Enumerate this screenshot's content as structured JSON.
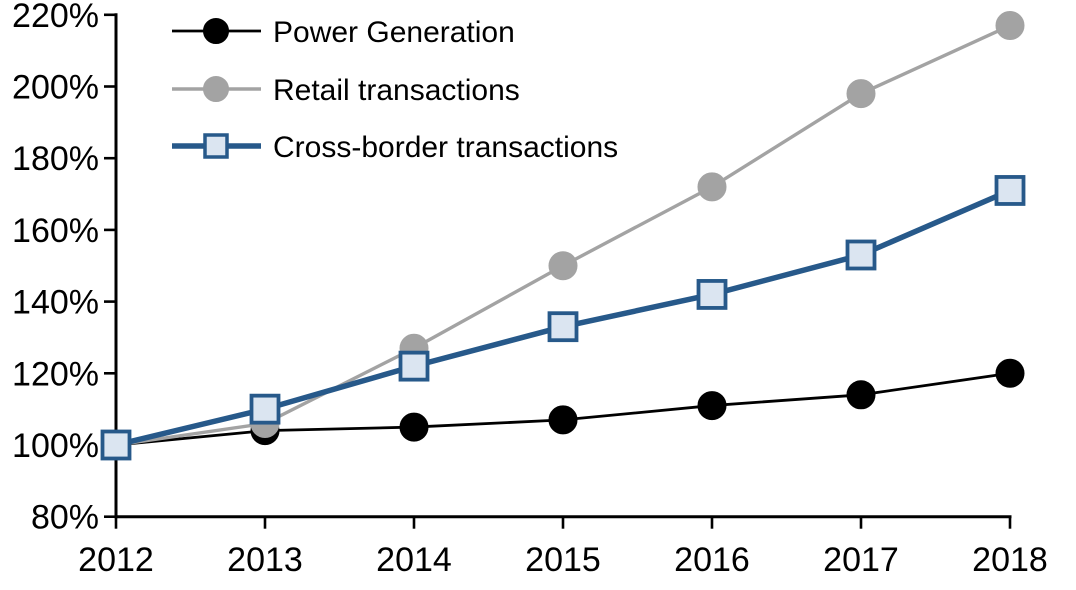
{
  "chart_data": {
    "type": "line",
    "title": "",
    "xlabel": "",
    "ylabel": "",
    "x": [
      2012,
      2013,
      2014,
      2015,
      2016,
      2017,
      2018
    ],
    "x_tick_labels": [
      "2012",
      "2013",
      "2014",
      "2015",
      "2016",
      "2017",
      "2018"
    ],
    "y_tick_labels": [
      "80%",
      "100%",
      "120%",
      "140%",
      "160%",
      "180%",
      "200%",
      "220%"
    ],
    "ylim": [
      80,
      220
    ],
    "y_tick_step": 20,
    "unit": "percent_index_2012_base_100",
    "grid": false,
    "legend_position": "top-left",
    "background_color": "#ffffff",
    "axis_color": "#000000",
    "series": [
      {
        "name": "Power Generation",
        "color": "#000000",
        "marker": "circle",
        "marker_fill": "#000000",
        "marker_stroke": "#000000",
        "line_width": 2.8,
        "values": [
          100,
          104,
          105,
          107,
          111,
          114,
          120
        ]
      },
      {
        "name": "Retail transactions",
        "color": "#a3a3a3",
        "marker": "circle",
        "marker_fill": "#a3a3a3",
        "marker_stroke": "#a3a3a3",
        "line_width": 3.4,
        "values": [
          100,
          106,
          127,
          150,
          172,
          198,
          217
        ]
      },
      {
        "name": "Cross-border transactions",
        "color": "#27598a",
        "marker": "square",
        "marker_fill": "#dbe5f1",
        "marker_stroke": "#27598a",
        "line_width": 5.5,
        "values": [
          100,
          110,
          122,
          133,
          142,
          153,
          171
        ]
      }
    ]
  }
}
